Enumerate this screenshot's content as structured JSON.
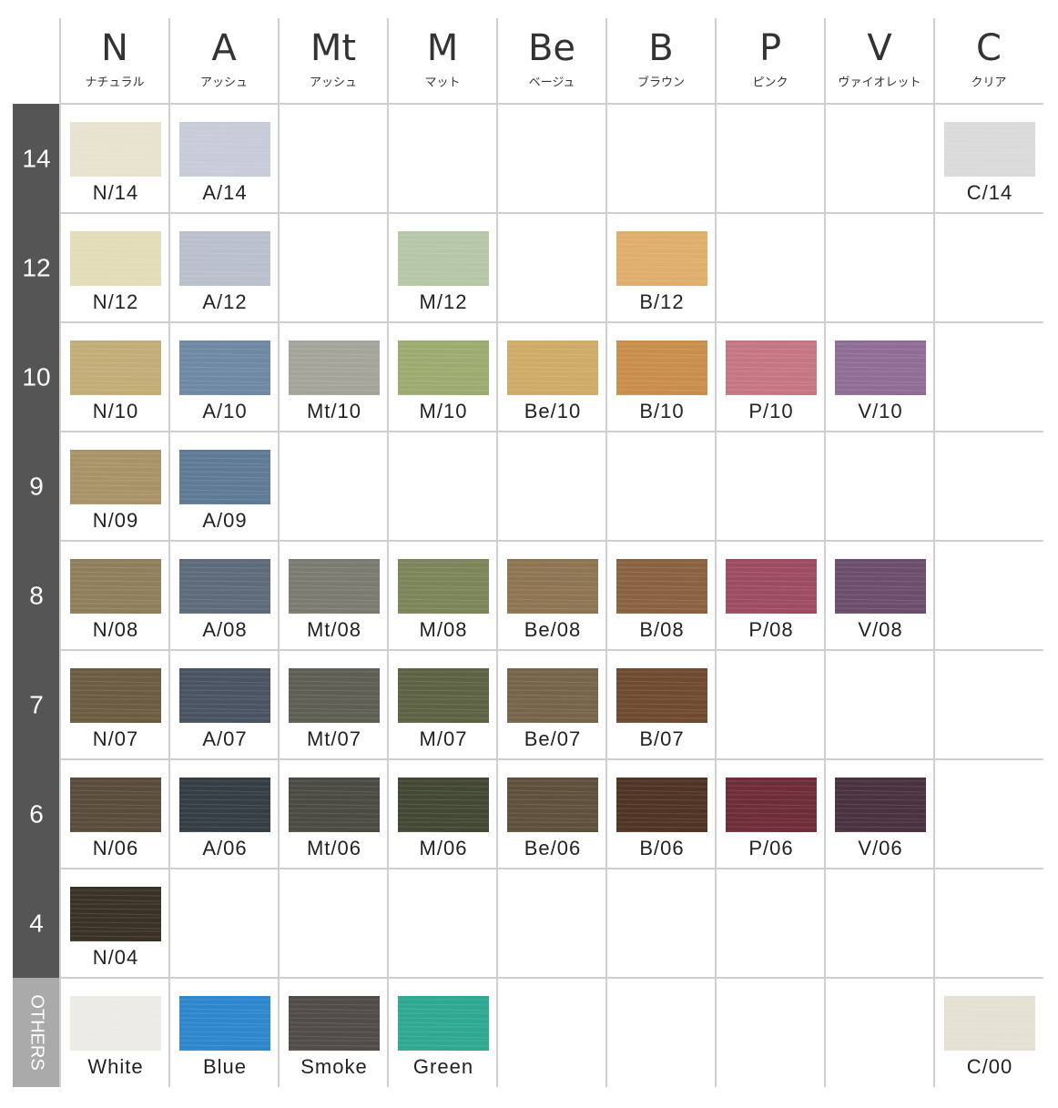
{
  "header": {
    "columns": [
      {
        "letter": "N",
        "kana": "ナチュラル"
      },
      {
        "letter": "A",
        "kana": "アッシュ"
      },
      {
        "letter": "Mt",
        "kana": "アッシュ"
      },
      {
        "letter": "M",
        "kana": "マット"
      },
      {
        "letter": "Be",
        "kana": "ベージュ"
      },
      {
        "letter": "B",
        "kana": "ブラウン"
      },
      {
        "letter": "P",
        "kana": "ピンク"
      },
      {
        "letter": "V",
        "kana": "ヴァイオレット"
      },
      {
        "letter": "C",
        "kana": "クリア"
      }
    ]
  },
  "rows": [
    {
      "level": "14",
      "cells": [
        {
          "label": "N/14",
          "color": "#e8e3cf"
        },
        {
          "label": "A/14",
          "color": "#c8ccd8"
        },
        null,
        null,
        null,
        null,
        null,
        null,
        {
          "label": "C/14",
          "color": "#dadada"
        }
      ]
    },
    {
      "level": "12",
      "cells": [
        {
          "label": "N/12",
          "color": "#e3dcb8"
        },
        {
          "label": "A/12",
          "color": "#b9c0cc"
        },
        null,
        {
          "label": "M/12",
          "color": "#b5c7a6"
        },
        null,
        {
          "label": "B/12",
          "color": "#dfae6c"
        },
        null,
        null,
        null
      ]
    },
    {
      "level": "10",
      "cells": [
        {
          "label": "N/10",
          "color": "#c2ad78"
        },
        {
          "label": "A/10",
          "color": "#6f88a4"
        },
        {
          "label": "Mt/10",
          "color": "#a5a49b"
        },
        {
          "label": "M/10",
          "color": "#9cac70"
        },
        {
          "label": "Be/10",
          "color": "#cfab68"
        },
        {
          "label": "B/10",
          "color": "#c98e4c"
        },
        {
          "label": "P/10",
          "color": "#c47783"
        },
        {
          "label": "V/10",
          "color": "#8f6d95"
        },
        null
      ]
    },
    {
      "level": "9",
      "cells": [
        {
          "label": "N/09",
          "color": "#a89368"
        },
        {
          "label": "A/09",
          "color": "#5f7a95"
        },
        null,
        null,
        null,
        null,
        null,
        null,
        null
      ]
    },
    {
      "level": "8",
      "cells": [
        {
          "label": "N/08",
          "color": "#8f7e5c"
        },
        {
          "label": "A/08",
          "color": "#5d6b7a"
        },
        {
          "label": "Mt/08",
          "color": "#7c7b72"
        },
        {
          "label": "M/08",
          "color": "#7c845a"
        },
        {
          "label": "Be/08",
          "color": "#8e7452"
        },
        {
          "label": "B/08",
          "color": "#8a6241"
        },
        {
          "label": "P/08",
          "color": "#9e4c62"
        },
        {
          "label": "V/08",
          "color": "#6b4e6c"
        },
        null
      ]
    },
    {
      "level": "7",
      "cells": [
        {
          "label": "N/07",
          "color": "#6c5c42"
        },
        {
          "label": "A/07",
          "color": "#4a5361"
        },
        {
          "label": "Mt/07",
          "color": "#5e5e55"
        },
        {
          "label": "M/07",
          "color": "#5d6245"
        },
        {
          "label": "Be/07",
          "color": "#76654a"
        },
        {
          "label": "B/07",
          "color": "#6e4a30"
        },
        null,
        null,
        null
      ]
    },
    {
      "level": "6",
      "cells": [
        {
          "label": "N/06",
          "color": "#5a4c3a"
        },
        {
          "label": "A/06",
          "color": "#353d45"
        },
        {
          "label": "Mt/06",
          "color": "#4b4b43"
        },
        {
          "label": "M/06",
          "color": "#434835"
        },
        {
          "label": "Be/06",
          "color": "#5e503a"
        },
        {
          "label": "B/06",
          "color": "#503424"
        },
        {
          "label": "P/06",
          "color": "#6e2d38"
        },
        {
          "label": "V/06",
          "color": "#4a3240"
        },
        null
      ]
    },
    {
      "level": "4",
      "cells": [
        {
          "label": "N/04",
          "color": "#3a3226"
        },
        null,
        null,
        null,
        null,
        null,
        null,
        null,
        null
      ]
    },
    {
      "level": "OTHERS",
      "cells": [
        {
          "label": "White",
          "color": "#ecebe6"
        },
        {
          "label": "Blue",
          "color": "#2e86cc"
        },
        {
          "label": "Smoke",
          "color": "#514c47"
        },
        {
          "label": "Green",
          "color": "#2ea890"
        },
        null,
        null,
        null,
        null,
        {
          "label": "C/00",
          "color": "#e5e1d2"
        }
      ]
    }
  ]
}
